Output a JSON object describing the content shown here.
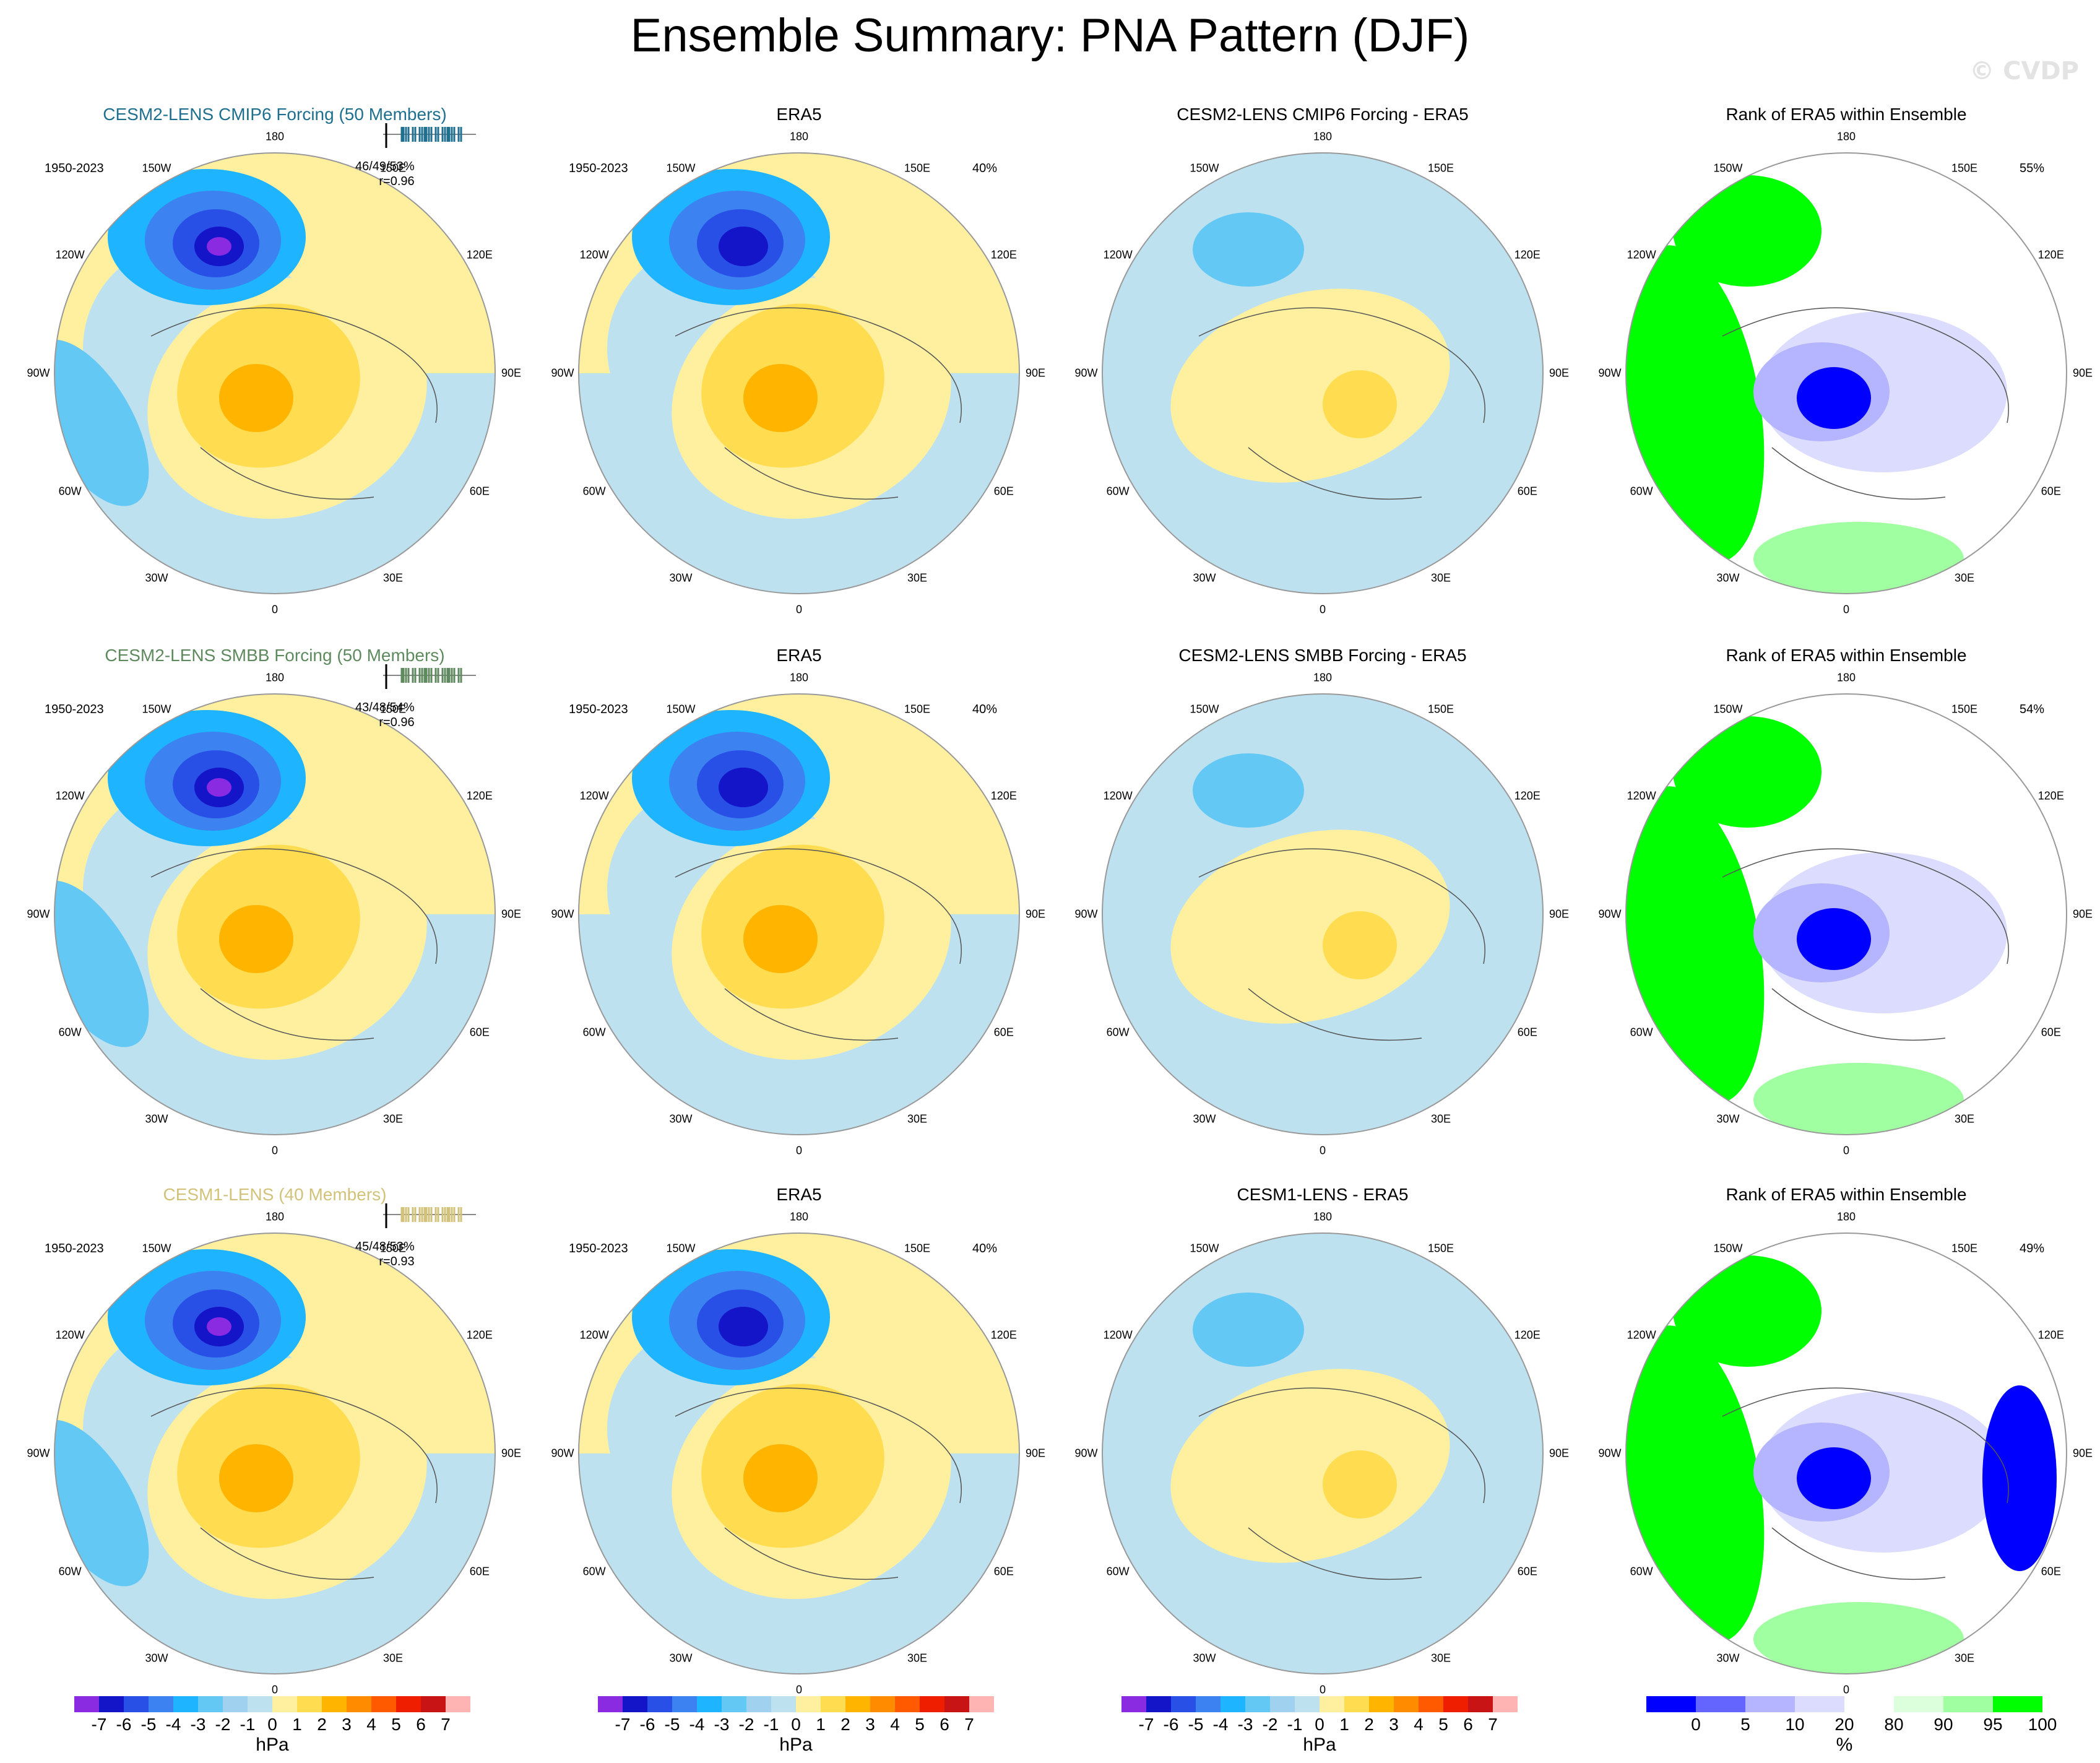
{
  "title": "Ensemble Summary: PNA Pattern (DJF)",
  "watermark": "© CVDP",
  "period": "1950-2023",
  "column_titles": {
    "obs": "ERA5",
    "rank": "Rank of ERA5 within Ensemble"
  },
  "lon_labels": [
    "180",
    "150E",
    "120E",
    "90E",
    "60E",
    "30E",
    "0",
    "30W",
    "60W",
    "90W",
    "120W",
    "150W"
  ],
  "rows": [
    {
      "model_title": "CESM2-LENS CMIP6 Forcing (50 Members)",
      "model_color": "#1f6f8f",
      "stats": "46/49/53%",
      "corr": "r=0.96",
      "obs_pct": "40%",
      "diff_title": "CESM2-LENS CMIP6 Forcing - ERA5",
      "rank_pct": "55%"
    },
    {
      "model_title": "CESM2-LENS SMBB Forcing (50 Members)",
      "model_color": "#5e8a5e",
      "stats": "43/48/54%",
      "corr": "r=0.96",
      "obs_pct": "40%",
      "diff_title": "CESM2-LENS SMBB Forcing - ERA5",
      "rank_pct": "54%"
    },
    {
      "model_title": "CESM1-LENS (40 Members)",
      "model_color": "#d2c27a",
      "stats": "45/48/53%",
      "corr": "r=0.93",
      "obs_pct": "40%",
      "diff_title": "CESM1-LENS - ERA5",
      "rank_pct": "49%"
    }
  ],
  "chart_data": {
    "type": "heatmap",
    "description_field": "SLP regression maps, polar stereographic",
    "colorbar_hpa": {
      "unit": "hPa",
      "levels": [
        "-7",
        "-6",
        "-5",
        "-4",
        "-3",
        "-2",
        "-1",
        "0",
        "1",
        "2",
        "3",
        "4",
        "5",
        "6",
        "7"
      ],
      "colors": [
        "#8a2be2",
        "#1414c8",
        "#2850e6",
        "#3c82f0",
        "#1eb4ff",
        "#64c8f5",
        "#a0d2f0",
        "#bee1f0",
        "#fff0a0",
        "#ffdc50",
        "#ffb400",
        "#ff8c00",
        "#ff5a00",
        "#f01e00",
        "#c81414",
        "#ffb4b4"
      ]
    },
    "colorbar_rank": {
      "unit": "%",
      "levels": [
        "0",
        "5",
        "10",
        "20",
        "80",
        "90",
        "95",
        "100"
      ],
      "colors": [
        "#0000ff",
        "#6464ff",
        "#b4b4ff",
        "#dcdcff",
        "#ffffff",
        "#dcffdc",
        "#a0ffa0",
        "#00ff00"
      ]
    }
  }
}
